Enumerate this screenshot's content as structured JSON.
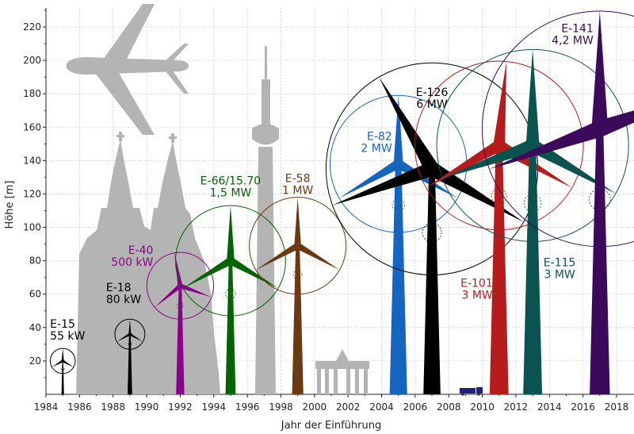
{
  "chart_data": {
    "type": "scatter",
    "title": "",
    "xlabel": "Jahr der Einführung",
    "ylabel": "Höhe [m]",
    "xlim": [
      1984,
      2018
    ],
    "ylim": [
      0,
      232
    ],
    "x_ticks": [
      "1984",
      "1986",
      "1988",
      "1990",
      "1992",
      "1994",
      "1996",
      "1998",
      "2000",
      "2002",
      "2004",
      "2006",
      "2008",
      "2010",
      "2012",
      "2014",
      "2016",
      "2018"
    ],
    "y_ticks": [
      "20",
      "40",
      "60",
      "80",
      "100",
      "120",
      "140",
      "160",
      "180",
      "200",
      "220"
    ],
    "grid": true,
    "series": [
      {
        "name": "E-15",
        "power": "55 kW",
        "year": 1985,
        "hub_height": 20,
        "rotor_diameter": 15,
        "color": "#000000"
      },
      {
        "name": "E-18",
        "power": "80 kW",
        "year": 1989,
        "hub_height": 36,
        "rotor_diameter": 18,
        "color": "#000000"
      },
      {
        "name": "E-40",
        "power": "500 kW",
        "year": 1992,
        "hub_height": 65,
        "rotor_diameter": 40,
        "color": "#8b008b"
      },
      {
        "name": "E-66/15.70",
        "power": "1,5 MW",
        "year": 1995,
        "hub_height": 80,
        "rotor_diameter": 66,
        "color": "#006400"
      },
      {
        "name": "E-58",
        "power": "1 MW",
        "year": 1999,
        "hub_height": 89,
        "rotor_diameter": 58,
        "color": "#6b3a10"
      },
      {
        "name": "E-82",
        "power": "2 MW",
        "year": 2005,
        "hub_height": 138,
        "rotor_diameter": 82,
        "color": "#1565c0"
      },
      {
        "name": "E-126",
        "power": "6 MW",
        "year": 2007,
        "hub_height": 135,
        "rotor_diameter": 127,
        "color": "#000000"
      },
      {
        "name": "E-101",
        "power": "3 MW",
        "year": 2011,
        "hub_height": 149,
        "rotor_diameter": 101,
        "color": "#b71c1c"
      },
      {
        "name": "E-115",
        "power": "3 MW",
        "year": 2013,
        "hub_height": 149,
        "rotor_diameter": 115,
        "color": "#0b5350"
      },
      {
        "name": "E-141",
        "power": "4,2 MW",
        "year": 2017,
        "hub_height": 159,
        "rotor_diameter": 141,
        "color": "#3b0a5a"
      }
    ]
  }
}
